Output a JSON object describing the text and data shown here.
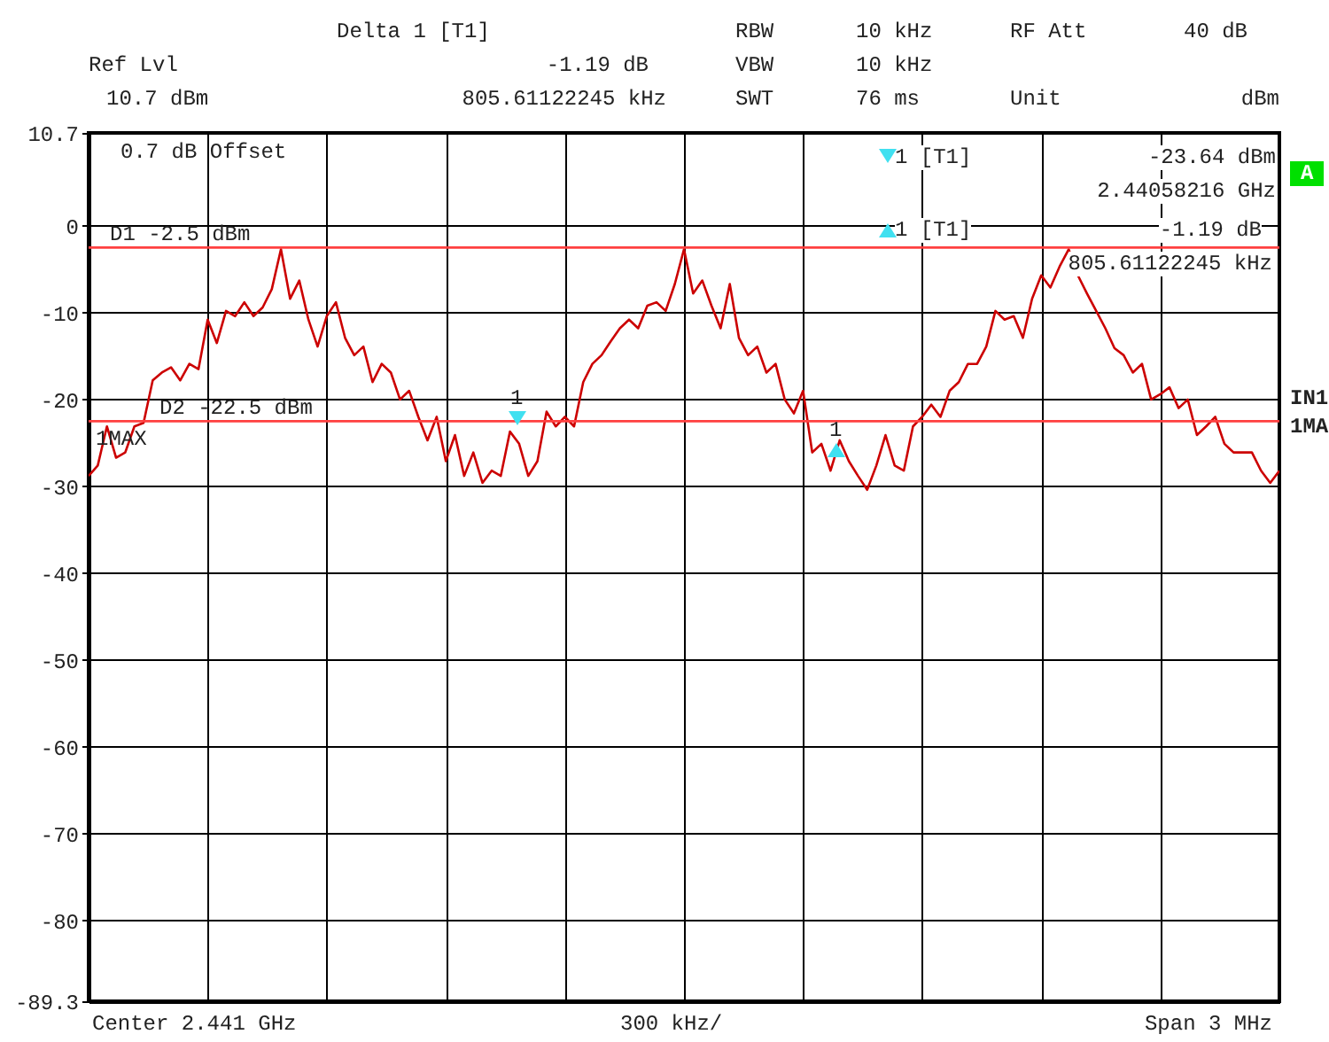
{
  "chart_data": {
    "type": "line",
    "categories": [
      null,
      null,
      null,
      null,
      null,
      null,
      null,
      null,
      null,
      null,
      null,
      null,
      null,
      null,
      null,
      null,
      null,
      null,
      null,
      null,
      null,
      null,
      null,
      null,
      null,
      null,
      null,
      null,
      null,
      null,
      null,
      null,
      null,
      null,
      null,
      null,
      null,
      null,
      null,
      null,
      null,
      null,
      null,
      null,
      null,
      null,
      null,
      null,
      null,
      null,
      null,
      null,
      null,
      null,
      null,
      null,
      null,
      null,
      null,
      null,
      null,
      null,
      null,
      null,
      null,
      null,
      null,
      null,
      null,
      null,
      null,
      null,
      null,
      null,
      null,
      null,
      null,
      null,
      null,
      null,
      null,
      null,
      null,
      null,
      null,
      null,
      null,
      null,
      null,
      null,
      null,
      null,
      null,
      null,
      null,
      null,
      null,
      null,
      null,
      null,
      null,
      null,
      null,
      null,
      null,
      null,
      null,
      null,
      null,
      null,
      null,
      null,
      null,
      null,
      null,
      null,
      null,
      null,
      null,
      null,
      null,
      null,
      null,
      null,
      null,
      null,
      null,
      null,
      null,
      null,
      null
    ],
    "series": [
      {
        "color": "#cc0000",
        "values": [
          -28.8,
          -27.6,
          -23.1,
          -26.7,
          -26.1,
          -23.1,
          -22.7,
          -17.8,
          -16.9,
          -16.3,
          -17.8,
          -15.9,
          -16.5,
          -10.8,
          -13.5,
          -9.8,
          -10.4,
          -8.8,
          -10.4,
          -9.4,
          -7.3,
          -2.7,
          -8.4,
          -6.3,
          -10.8,
          -13.9,
          -10.4,
          -8.8,
          -12.9,
          -14.9,
          -13.9,
          -18.0,
          -15.9,
          -16.9,
          -20.0,
          -19.0,
          -22.0,
          -24.7,
          -22.0,
          -27.1,
          -24.1,
          -28.8,
          -26.1,
          -29.6,
          -28.2,
          -28.8,
          -23.7,
          -25.1,
          -28.8,
          -27.1,
          -21.4,
          -23.1,
          -22.0,
          -23.1,
          -18.0,
          -15.9,
          -14.9,
          -13.3,
          -11.8,
          -10.8,
          -11.8,
          -9.2,
          -8.8,
          -9.8,
          -6.7,
          -2.7,
          -7.8,
          -6.3,
          -9.2,
          -11.8,
          -6.7,
          -12.9,
          -14.9,
          -13.9,
          -16.9,
          -15.9,
          -20.0,
          -21.6,
          -19.0,
          -26.1,
          -25.1,
          -28.2,
          -24.7,
          -27.1,
          -28.8,
          -30.4,
          -27.6,
          -24.1,
          -27.6,
          -28.2,
          -23.1,
          -22.0,
          -20.6,
          -22.0,
          -19.0,
          -18.0,
          -15.9,
          -15.9,
          -13.9,
          -9.8,
          -10.8,
          -10.4,
          -12.9,
          -8.4,
          -5.7,
          -7.1,
          -4.7,
          -2.7,
          -5.7,
          -7.8,
          -9.8,
          -11.8,
          -14.1,
          -14.9,
          -16.9,
          -15.9,
          -20.0,
          -19.4,
          -18.6,
          -21.0,
          -20.0,
          -24.1,
          -23.1,
          -22.0,
          -25.1,
          -26.1,
          -26.1,
          -26.1,
          -28.2,
          -29.6,
          -28.2
        ]
      }
    ],
    "ylim": [
      -89.3,
      10.7
    ],
    "yticks": [
      10.7,
      0,
      -10,
      -20,
      -30,
      -40,
      -50,
      -60,
      -70,
      -80,
      -89.3
    ],
    "grid": true,
    "legend": false,
    "tick_labels": "y",
    "line_style": "solid",
    "ref_lines": [
      {
        "axis": "y",
        "value": -2.5,
        "label": "D1 -2.5 dBm",
        "color": "#ff4040"
      },
      {
        "axis": "y",
        "value": -22.5,
        "label": "D2 -22.5 dBm",
        "color": "#ff4040"
      }
    ],
    "annotations": [
      "Delta 1 [T1]",
      "RBW",
      "10 kHz",
      "RF Att",
      "40 dB",
      "Ref Lvl",
      "-1.19 dB",
      "VBW",
      "10 kHz",
      "10.7 dBm",
      "805.61122245 kHz",
      "SWT",
      "76 ms",
      "Unit",
      "dBm",
      "0.7 dB Offset",
      "1 [T1]",
      "-23.64 dBm",
      "2.44058216 GHz",
      "1 [T1]",
      "-1.19 dB",
      "805.61122245 kHz",
      "A",
      "IN1",
      "1MA",
      "1MAX",
      "1",
      "1",
      "Center 2.441 GHz",
      "300 kHz/",
      "Span 3 MHz"
    ]
  }
}
